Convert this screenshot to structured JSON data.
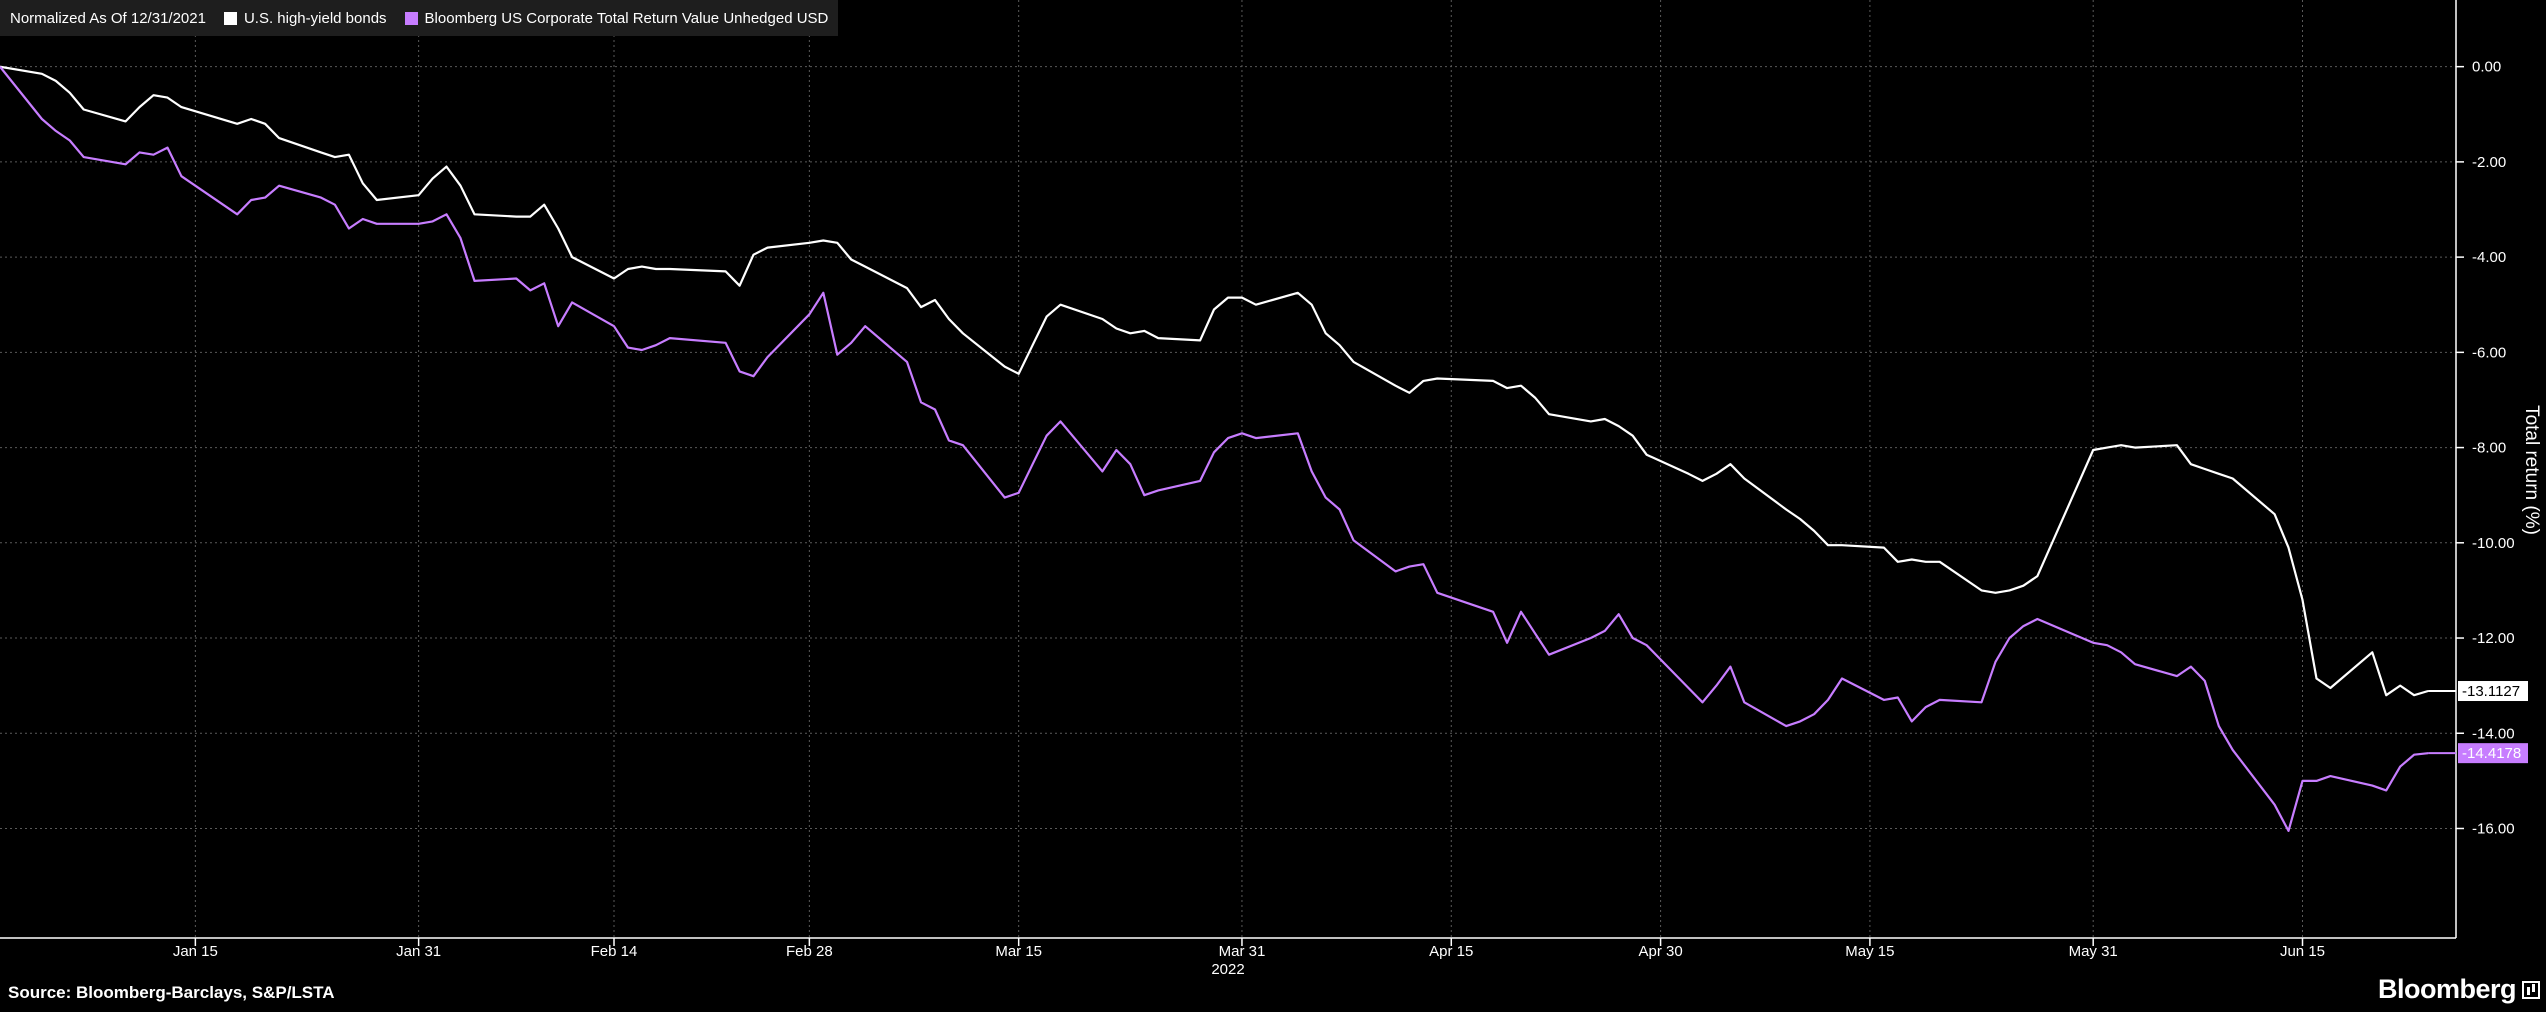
{
  "legend": {
    "note": "Normalized As Of 12/31/2021",
    "items": [
      {
        "label": "U.S. high-yield bonds",
        "color": "#ffffff"
      },
      {
        "label": "Bloomberg US Corporate Total Return Value Unhedged USD",
        "color": "#c77dff"
      }
    ]
  },
  "footer": {
    "source": "Source: Bloomberg-Barclays, S&P/LSTA",
    "brand": "Bloomberg",
    "brand_icon": "bloomberg-chart-icon"
  },
  "chart_data": {
    "type": "line",
    "ylabel": "Total return (%)",
    "year_label": "2022",
    "xlim": [
      "2022-01-01",
      "2022-06-26"
    ],
    "ylim": [
      -18.3,
      1.4
    ],
    "y_axis_side": "right",
    "y_ticks": [
      0,
      -2,
      -4,
      -6,
      -8,
      -10,
      -12,
      -14,
      -16
    ],
    "y_tick_labels": [
      "0.00",
      "-2.00",
      "-4.00",
      "-6.00",
      "-8.00",
      "-10.00",
      "-12.00",
      "-14.00",
      "-16.00"
    ],
    "x_ticks": [
      {
        "date": "2022-01-15",
        "label": "Jan 15"
      },
      {
        "date": "2022-01-31",
        "label": "Jan 31"
      },
      {
        "date": "2022-02-14",
        "label": "Feb 14"
      },
      {
        "date": "2022-02-28",
        "label": "Feb 28"
      },
      {
        "date": "2022-03-15",
        "label": "Mar 15"
      },
      {
        "date": "2022-03-31",
        "label": "Mar 31"
      },
      {
        "date": "2022-04-15",
        "label": "Apr 15"
      },
      {
        "date": "2022-04-30",
        "label": "Apr 30"
      },
      {
        "date": "2022-05-15",
        "label": "May 15"
      },
      {
        "date": "2022-05-31",
        "label": "May 31"
      },
      {
        "date": "2022-06-15",
        "label": "Jun 15"
      }
    ],
    "grid": true,
    "series": [
      {
        "name": "U.S. high-yield bonds",
        "color": "#ffffff",
        "last_value_label": "-13.1127",
        "points": [
          [
            "2022-01-01",
            0.0
          ],
          [
            "2022-01-04",
            -0.15
          ],
          [
            "2022-01-05",
            -0.3
          ],
          [
            "2022-01-06",
            -0.55
          ],
          [
            "2022-01-07",
            -0.9
          ],
          [
            "2022-01-10",
            -1.15
          ],
          [
            "2022-01-11",
            -0.85
          ],
          [
            "2022-01-12",
            -0.6
          ],
          [
            "2022-01-13",
            -0.65
          ],
          [
            "2022-01-14",
            -0.85
          ],
          [
            "2022-01-18",
            -1.2
          ],
          [
            "2022-01-19",
            -1.1
          ],
          [
            "2022-01-20",
            -1.2
          ],
          [
            "2022-01-21",
            -1.5
          ],
          [
            "2022-01-24",
            -1.8
          ],
          [
            "2022-01-25",
            -1.9
          ],
          [
            "2022-01-26",
            -1.85
          ],
          [
            "2022-01-27",
            -2.45
          ],
          [
            "2022-01-28",
            -2.8
          ],
          [
            "2022-01-31",
            -2.7
          ],
          [
            "2022-02-01",
            -2.35
          ],
          [
            "2022-02-02",
            -2.1
          ],
          [
            "2022-02-03",
            -2.5
          ],
          [
            "2022-02-04",
            -3.1
          ],
          [
            "2022-02-07",
            -3.15
          ],
          [
            "2022-02-08",
            -3.15
          ],
          [
            "2022-02-09",
            -2.9
          ],
          [
            "2022-02-10",
            -3.4
          ],
          [
            "2022-02-11",
            -4.0
          ],
          [
            "2022-02-14",
            -4.45
          ],
          [
            "2022-02-15",
            -4.25
          ],
          [
            "2022-02-16",
            -4.2
          ],
          [
            "2022-02-17",
            -4.25
          ],
          [
            "2022-02-18",
            -4.25
          ],
          [
            "2022-02-22",
            -4.3
          ],
          [
            "2022-02-23",
            -4.6
          ],
          [
            "2022-02-24",
            -3.95
          ],
          [
            "2022-02-25",
            -3.8
          ],
          [
            "2022-02-28",
            -3.7
          ],
          [
            "2022-03-01",
            -3.65
          ],
          [
            "2022-03-02",
            -3.7
          ],
          [
            "2022-03-03",
            -4.05
          ],
          [
            "2022-03-04",
            -4.2
          ],
          [
            "2022-03-07",
            -4.65
          ],
          [
            "2022-03-08",
            -5.05
          ],
          [
            "2022-03-09",
            -4.9
          ],
          [
            "2022-03-10",
            -5.3
          ],
          [
            "2022-03-11",
            -5.6
          ],
          [
            "2022-03-14",
            -6.3
          ],
          [
            "2022-03-15",
            -6.45
          ],
          [
            "2022-03-16",
            -5.85
          ],
          [
            "2022-03-17",
            -5.25
          ],
          [
            "2022-03-18",
            -5.0
          ],
          [
            "2022-03-21",
            -5.3
          ],
          [
            "2022-03-22",
            -5.5
          ],
          [
            "2022-03-23",
            -5.6
          ],
          [
            "2022-03-24",
            -5.55
          ],
          [
            "2022-03-25",
            -5.7
          ],
          [
            "2022-03-28",
            -5.75
          ],
          [
            "2022-03-29",
            -5.1
          ],
          [
            "2022-03-30",
            -4.85
          ],
          [
            "2022-03-31",
            -4.85
          ],
          [
            "2022-04-01",
            -5.0
          ],
          [
            "2022-04-04",
            -4.75
          ],
          [
            "2022-04-05",
            -5.0
          ],
          [
            "2022-04-06",
            -5.6
          ],
          [
            "2022-04-07",
            -5.85
          ],
          [
            "2022-04-08",
            -6.2
          ],
          [
            "2022-04-11",
            -6.7
          ],
          [
            "2022-04-12",
            -6.85
          ],
          [
            "2022-04-13",
            -6.6
          ],
          [
            "2022-04-14",
            -6.55
          ],
          [
            "2022-04-18",
            -6.6
          ],
          [
            "2022-04-19",
            -6.75
          ],
          [
            "2022-04-20",
            -6.7
          ],
          [
            "2022-04-21",
            -6.95
          ],
          [
            "2022-04-22",
            -7.3
          ],
          [
            "2022-04-25",
            -7.45
          ],
          [
            "2022-04-26",
            -7.4
          ],
          [
            "2022-04-27",
            -7.55
          ],
          [
            "2022-04-28",
            -7.75
          ],
          [
            "2022-04-29",
            -8.15
          ],
          [
            "2022-05-02",
            -8.55
          ],
          [
            "2022-05-03",
            -8.7
          ],
          [
            "2022-05-04",
            -8.55
          ],
          [
            "2022-05-05",
            -8.35
          ],
          [
            "2022-05-06",
            -8.65
          ],
          [
            "2022-05-09",
            -9.3
          ],
          [
            "2022-05-10",
            -9.5
          ],
          [
            "2022-05-11",
            -9.75
          ],
          [
            "2022-05-12",
            -10.05
          ],
          [
            "2022-05-13",
            -10.05
          ],
          [
            "2022-05-16",
            -10.1
          ],
          [
            "2022-05-17",
            -10.4
          ],
          [
            "2022-05-18",
            -10.35
          ],
          [
            "2022-05-19",
            -10.4
          ],
          [
            "2022-05-20",
            -10.4
          ],
          [
            "2022-05-23",
            -11.0
          ],
          [
            "2022-05-24",
            -11.05
          ],
          [
            "2022-05-25",
            -11.0
          ],
          [
            "2022-05-26",
            -10.9
          ],
          [
            "2022-05-27",
            -10.7
          ],
          [
            "2022-05-31",
            -8.05
          ],
          [
            "2022-06-01",
            -8.0
          ],
          [
            "2022-06-02",
            -7.95
          ],
          [
            "2022-06-03",
            -8.0
          ],
          [
            "2022-06-06",
            -7.95
          ],
          [
            "2022-06-07",
            -8.35
          ],
          [
            "2022-06-08",
            -8.45
          ],
          [
            "2022-06-09",
            -8.55
          ],
          [
            "2022-06-10",
            -8.65
          ],
          [
            "2022-06-13",
            -9.4
          ],
          [
            "2022-06-14",
            -10.1
          ],
          [
            "2022-06-15",
            -11.2
          ],
          [
            "2022-06-16",
            -12.85
          ],
          [
            "2022-06-17",
            -13.05
          ],
          [
            "2022-06-20",
            -12.3
          ],
          [
            "2022-06-21",
            -13.2
          ],
          [
            "2022-06-22",
            -13.0
          ],
          [
            "2022-06-23",
            -13.2
          ],
          [
            "2022-06-24",
            -13.1127
          ]
        ]
      },
      {
        "name": "Bloomberg US Corporate Total Return Value Unhedged USD",
        "color": "#c77dff",
        "last_value_label": "-14.4178",
        "points": [
          [
            "2022-01-01",
            0.0
          ],
          [
            "2022-01-04",
            -1.1
          ],
          [
            "2022-01-05",
            -1.35
          ],
          [
            "2022-01-06",
            -1.55
          ],
          [
            "2022-01-07",
            -1.9
          ],
          [
            "2022-01-10",
            -2.05
          ],
          [
            "2022-01-11",
            -1.8
          ],
          [
            "2022-01-12",
            -1.85
          ],
          [
            "2022-01-13",
            -1.7
          ],
          [
            "2022-01-14",
            -2.3
          ],
          [
            "2022-01-18",
            -3.1
          ],
          [
            "2022-01-19",
            -2.8
          ],
          [
            "2022-01-20",
            -2.75
          ],
          [
            "2022-01-21",
            -2.5
          ],
          [
            "2022-01-24",
            -2.75
          ],
          [
            "2022-01-25",
            -2.9
          ],
          [
            "2022-01-26",
            -3.4
          ],
          [
            "2022-01-27",
            -3.2
          ],
          [
            "2022-01-28",
            -3.3
          ],
          [
            "2022-01-31",
            -3.3
          ],
          [
            "2022-02-01",
            -3.25
          ],
          [
            "2022-02-02",
            -3.1
          ],
          [
            "2022-02-03",
            -3.6
          ],
          [
            "2022-02-04",
            -4.5
          ],
          [
            "2022-02-07",
            -4.45
          ],
          [
            "2022-02-08",
            -4.7
          ],
          [
            "2022-02-09",
            -4.55
          ],
          [
            "2022-02-10",
            -5.45
          ],
          [
            "2022-02-11",
            -4.95
          ],
          [
            "2022-02-14",
            -5.45
          ],
          [
            "2022-02-15",
            -5.9
          ],
          [
            "2022-02-16",
            -5.95
          ],
          [
            "2022-02-17",
            -5.85
          ],
          [
            "2022-02-18",
            -5.7
          ],
          [
            "2022-02-22",
            -5.8
          ],
          [
            "2022-02-23",
            -6.4
          ],
          [
            "2022-02-24",
            -6.5
          ],
          [
            "2022-02-25",
            -6.1
          ],
          [
            "2022-02-28",
            -5.2
          ],
          [
            "2022-03-01",
            -4.75
          ],
          [
            "2022-03-02",
            -6.05
          ],
          [
            "2022-03-03",
            -5.8
          ],
          [
            "2022-03-04",
            -5.45
          ],
          [
            "2022-03-07",
            -6.2
          ],
          [
            "2022-03-08",
            -7.05
          ],
          [
            "2022-03-09",
            -7.2
          ],
          [
            "2022-03-10",
            -7.85
          ],
          [
            "2022-03-11",
            -7.95
          ],
          [
            "2022-03-14",
            -9.05
          ],
          [
            "2022-03-15",
            -8.95
          ],
          [
            "2022-03-16",
            -8.35
          ],
          [
            "2022-03-17",
            -7.75
          ],
          [
            "2022-03-18",
            -7.45
          ],
          [
            "2022-03-21",
            -8.5
          ],
          [
            "2022-03-22",
            -8.05
          ],
          [
            "2022-03-23",
            -8.35
          ],
          [
            "2022-03-24",
            -9.0
          ],
          [
            "2022-03-25",
            -8.9
          ],
          [
            "2022-03-28",
            -8.7
          ],
          [
            "2022-03-29",
            -8.1
          ],
          [
            "2022-03-30",
            -7.8
          ],
          [
            "2022-03-31",
            -7.7
          ],
          [
            "2022-04-01",
            -7.8
          ],
          [
            "2022-04-04",
            -7.7
          ],
          [
            "2022-04-05",
            -8.5
          ],
          [
            "2022-04-06",
            -9.05
          ],
          [
            "2022-04-07",
            -9.3
          ],
          [
            "2022-04-08",
            -9.95
          ],
          [
            "2022-04-11",
            -10.6
          ],
          [
            "2022-04-12",
            -10.5
          ],
          [
            "2022-04-13",
            -10.45
          ],
          [
            "2022-04-14",
            -11.05
          ],
          [
            "2022-04-18",
            -11.45
          ],
          [
            "2022-04-19",
            -12.1
          ],
          [
            "2022-04-20",
            -11.45
          ],
          [
            "2022-04-21",
            -11.9
          ],
          [
            "2022-04-22",
            -12.35
          ],
          [
            "2022-04-25",
            -12.0
          ],
          [
            "2022-04-26",
            -11.85
          ],
          [
            "2022-04-27",
            -11.5
          ],
          [
            "2022-04-28",
            -12.0
          ],
          [
            "2022-04-29",
            -12.15
          ],
          [
            "2022-05-02",
            -13.05
          ],
          [
            "2022-05-03",
            -13.35
          ],
          [
            "2022-05-04",
            -13.0
          ],
          [
            "2022-05-05",
            -12.6
          ],
          [
            "2022-05-06",
            -13.35
          ],
          [
            "2022-05-09",
            -13.85
          ],
          [
            "2022-05-10",
            -13.75
          ],
          [
            "2022-05-11",
            -13.6
          ],
          [
            "2022-05-12",
            -13.3
          ],
          [
            "2022-05-13",
            -12.85
          ],
          [
            "2022-05-16",
            -13.3
          ],
          [
            "2022-05-17",
            -13.25
          ],
          [
            "2022-05-18",
            -13.75
          ],
          [
            "2022-05-19",
            -13.45
          ],
          [
            "2022-05-20",
            -13.3
          ],
          [
            "2022-05-23",
            -13.35
          ],
          [
            "2022-05-24",
            -12.5
          ],
          [
            "2022-05-25",
            -12.0
          ],
          [
            "2022-05-26",
            -11.75
          ],
          [
            "2022-05-27",
            -11.6
          ],
          [
            "2022-05-31",
            -12.1
          ],
          [
            "2022-06-01",
            -12.15
          ],
          [
            "2022-06-02",
            -12.3
          ],
          [
            "2022-06-03",
            -12.55
          ],
          [
            "2022-06-06",
            -12.8
          ],
          [
            "2022-06-07",
            -12.6
          ],
          [
            "2022-06-08",
            -12.9
          ],
          [
            "2022-06-09",
            -13.85
          ],
          [
            "2022-06-10",
            -14.35
          ],
          [
            "2022-06-13",
            -15.5
          ],
          [
            "2022-06-14",
            -16.05
          ],
          [
            "2022-06-15",
            -15.0
          ],
          [
            "2022-06-16",
            -15.0
          ],
          [
            "2022-06-17",
            -14.9
          ],
          [
            "2022-06-20",
            -15.1
          ],
          [
            "2022-06-21",
            -15.2
          ],
          [
            "2022-06-22",
            -14.7
          ],
          [
            "2022-06-23",
            -14.45
          ],
          [
            "2022-06-24",
            -14.4178
          ]
        ]
      }
    ]
  }
}
